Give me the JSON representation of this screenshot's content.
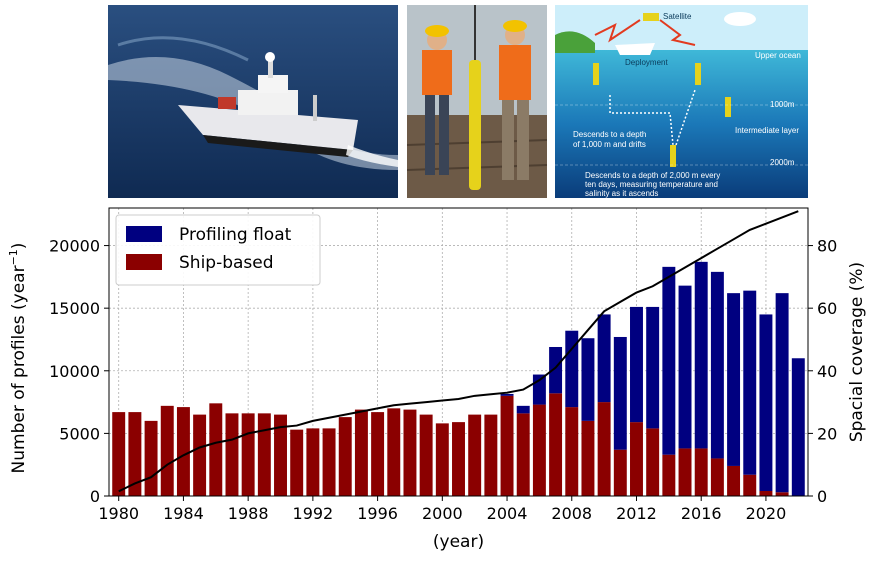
{
  "photos": {
    "diagram": {
      "labels": {
        "satellite": "Satellite",
        "deployment": "Deployment",
        "upper_ocean": "Upper ocean",
        "depth_1000": "1000m",
        "intermediate": "Intermediate layer",
        "depth_2000": "2000m",
        "descend_1000_line1": "Descends to a depth",
        "descend_1000_line2": "of 1,000 m and drifts",
        "descend_2000_line1": "Descends to a depth of 2,000 m every",
        "descend_2000_line2": "ten days, measuring temperature and",
        "descend_2000_line3": "salinity as it ascends"
      }
    }
  },
  "colors": {
    "float": "#000080",
    "ship": "#8b0000",
    "coverage_line": "#000000",
    "grid": "#b0b0b0"
  },
  "chart_data": {
    "type": "bar",
    "stacked": true,
    "x": [
      1980,
      1981,
      1982,
      1983,
      1984,
      1985,
      1986,
      1987,
      1988,
      1989,
      1990,
      1991,
      1992,
      1993,
      1994,
      1995,
      1996,
      1997,
      1998,
      1999,
      2000,
      2001,
      2002,
      2003,
      2004,
      2005,
      2006,
      2007,
      2008,
      2009,
      2010,
      2011,
      2012,
      2013,
      2014,
      2015,
      2016,
      2017,
      2018,
      2019,
      2020,
      2021,
      2022
    ],
    "series": [
      {
        "name": "Profiling float",
        "values": [
          0,
          0,
          0,
          0,
          0,
          0,
          0,
          0,
          0,
          0,
          0,
          0,
          0,
          0,
          0,
          0,
          0,
          0,
          0,
          0,
          0,
          0,
          0,
          0,
          150,
          600,
          2400,
          3700,
          6100,
          6600,
          7000,
          9000,
          9200,
          9700,
          15000,
          13000,
          14900,
          14900,
          13800,
          14700,
          14100,
          15900,
          11000
        ]
      },
      {
        "name": "Ship-based",
        "values": [
          6700,
          6700,
          6000,
          7200,
          7100,
          6500,
          7400,
          6600,
          6600,
          6600,
          6500,
          5300,
          5400,
          5400,
          6300,
          6900,
          6700,
          7000,
          6900,
          6500,
          5800,
          5900,
          6500,
          6500,
          8000,
          6600,
          7300,
          8200,
          7100,
          6000,
          7500,
          3700,
          5900,
          5400,
          3300,
          3800,
          3800,
          3000,
          2400,
          1700,
          400,
          300,
          0
        ]
      }
    ],
    "coverage": {
      "axis": "right",
      "values": [
        1.5,
        4,
        6,
        10,
        13,
        15.5,
        17,
        18,
        20,
        21,
        22,
        22.5,
        24,
        25,
        26,
        27,
        28,
        29,
        29.5,
        30,
        30.5,
        31,
        32,
        32.5,
        33,
        34,
        37,
        41,
        47,
        53,
        59,
        62,
        65,
        67,
        70,
        73,
        76,
        79,
        82,
        85,
        87,
        89,
        91
      ]
    },
    "xlabel": "(year)",
    "ylabel": "Number of profiles (year",
    "ylabel_superscript": "−1",
    "ylabel_close": ")",
    "y2label": "Spacial coverage (%)",
    "xticks": [
      1980,
      1984,
      1988,
      1992,
      1996,
      2000,
      2004,
      2008,
      2012,
      2016,
      2020
    ],
    "yticks": [
      0,
      5000,
      10000,
      15000,
      20000
    ],
    "y2ticks": [
      0,
      20,
      40,
      60,
      80
    ],
    "xlim": [
      1979.4,
      2022.6
    ],
    "ylim": [
      0,
      23000
    ],
    "y2lim": [
      0,
      92
    ],
    "grid": true,
    "legend_position": "top-left"
  }
}
